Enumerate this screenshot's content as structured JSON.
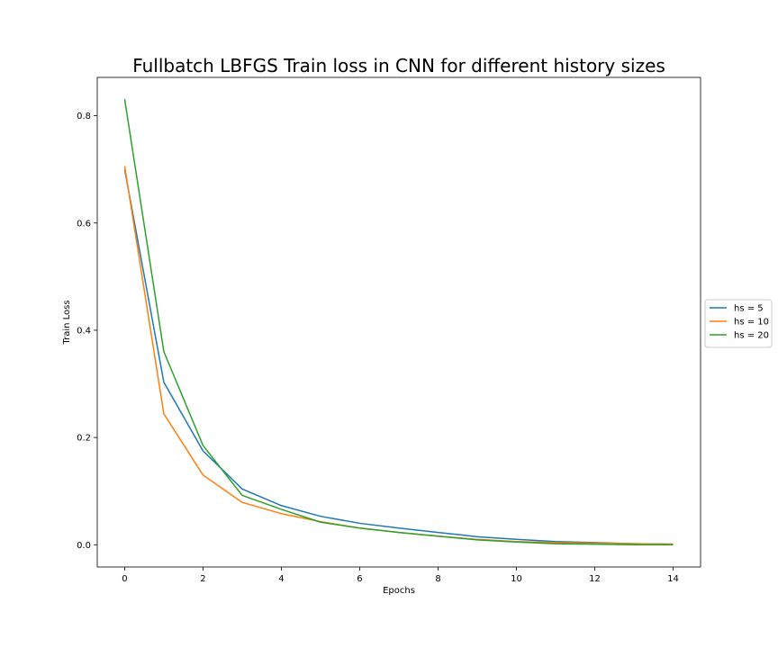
{
  "chart_data": {
    "type": "line",
    "title": "Fullbatch LBFGS Train loss in CNN for different history sizes",
    "xlabel": "Epochs",
    "ylabel": "Train Loss",
    "xlim": [
      -0.7,
      14.7
    ],
    "ylim": [
      -0.0415,
      0.8715
    ],
    "xticks": [
      0,
      2,
      4,
      6,
      8,
      10,
      12,
      14
    ],
    "xtick_labels": [
      "0",
      "2",
      "4",
      "6",
      "8",
      "10",
      "12",
      "14"
    ],
    "yticks": [
      0.0,
      0.2,
      0.4,
      0.6,
      0.8
    ],
    "ytick_labels": [
      "0.0",
      "0.2",
      "0.4",
      "0.6",
      "0.8"
    ],
    "grid": false,
    "legend_position": "outside-right",
    "x": [
      0,
      1,
      2,
      3,
      4,
      5,
      6,
      7,
      8,
      9,
      10,
      11,
      12,
      13,
      14
    ],
    "series": [
      {
        "name": "hs = 5",
        "color": "#1f77b4",
        "values": [
          0.7,
          0.303,
          0.175,
          0.104,
          0.073,
          0.053,
          0.04,
          0.031,
          0.023,
          0.015,
          0.01,
          0.006,
          0.004,
          0.002,
          0.001
        ]
      },
      {
        "name": "hs = 10",
        "color": "#ff7f0e",
        "values": [
          0.706,
          0.244,
          0.13,
          0.079,
          0.058,
          0.043,
          0.031,
          0.023,
          0.016,
          0.01,
          0.006,
          0.004,
          0.003,
          0.002,
          0.001
        ]
      },
      {
        "name": "hs = 20",
        "color": "#2ca02c",
        "values": [
          0.831,
          0.36,
          0.185,
          0.092,
          0.066,
          0.042,
          0.031,
          0.023,
          0.016,
          0.009,
          0.005,
          0.002,
          0.001,
          0.0,
          0.0
        ]
      }
    ]
  }
}
